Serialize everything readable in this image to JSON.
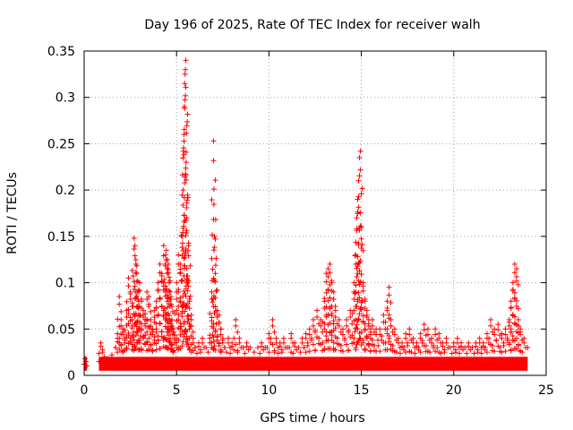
{
  "chart_data": {
    "type": "scatter",
    "title": "Day 196 of 2025, Rate Of TEC Index for receiver walh",
    "xlabel": "GPS time / hours",
    "ylabel": "ROTI / TECUs",
    "xlim": [
      0,
      25
    ],
    "ylim": [
      0,
      0.35
    ],
    "xticks": [
      0,
      5,
      10,
      15,
      20,
      25
    ],
    "yticks": [
      0,
      0.05,
      0.1,
      0.15,
      0.2,
      0.25,
      0.3,
      0.35
    ],
    "xtick_labels": [
      "0",
      "5",
      "10",
      "15",
      "20",
      "25"
    ],
    "ytick_labels": [
      "0",
      "0.05",
      "0.1",
      "0.15",
      "0.2",
      "0.25",
      "0.3",
      "0.35"
    ],
    "grid": true,
    "marker": "+",
    "color": "#ff0000",
    "series": [
      {
        "name": "ROTI",
        "x": [
          0.0,
          0.05,
          0.1,
          0.15,
          0.8,
          0.9,
          1.0,
          1.1,
          1.3,
          1.5,
          1.7,
          1.8,
          1.9,
          2.0,
          2.1,
          2.2,
          2.3,
          2.4,
          2.5,
          2.6,
          2.7,
          2.75,
          2.8,
          2.85,
          2.9,
          2.95,
          3.0,
          3.1,
          3.2,
          3.3,
          3.4,
          3.5,
          3.6,
          3.7,
          3.8,
          3.9,
          4.0,
          4.1,
          4.2,
          4.3,
          4.4,
          4.45,
          4.5,
          4.55,
          4.6,
          4.65,
          4.7,
          4.75,
          4.8,
          4.9,
          5.0,
          5.1,
          5.2,
          5.3,
          5.35,
          5.4,
          5.42,
          5.44,
          5.46,
          5.48,
          5.5,
          5.52,
          5.55,
          5.6,
          5.65,
          5.7,
          5.8,
          5.9,
          6.0,
          6.2,
          6.4,
          6.6,
          6.8,
          6.9,
          7.0,
          7.02,
          7.05,
          7.1,
          7.2,
          7.3,
          7.4,
          7.5,
          7.6,
          7.8,
          8.0,
          8.2,
          8.4,
          8.6,
          8.8,
          9.0,
          9.2,
          9.4,
          9.6,
          9.8,
          10.0,
          10.2,
          10.4,
          10.6,
          10.8,
          11.0,
          11.2,
          11.4,
          11.6,
          11.8,
          12.0,
          12.2,
          12.4,
          12.6,
          12.8,
          13.0,
          13.1,
          13.2,
          13.3,
          13.4,
          13.5,
          13.6,
          13.8,
          14.0,
          14.2,
          14.4,
          14.6,
          14.7,
          14.75,
          14.8,
          14.85,
          14.9,
          14.95,
          15.0,
          15.1,
          15.2,
          15.3,
          15.4,
          15.5,
          15.6,
          15.8,
          16.0,
          16.2,
          16.4,
          16.5,
          16.6,
          16.8,
          17.0,
          17.2,
          17.4,
          17.6,
          17.8,
          18.0,
          18.2,
          18.4,
          18.6,
          18.8,
          19.0,
          19.2,
          19.4,
          19.6,
          19.8,
          20.0,
          20.2,
          20.4,
          20.6,
          20.8,
          21.0,
          21.2,
          21.4,
          21.6,
          21.8,
          22.0,
          22.2,
          22.4,
          22.6,
          22.8,
          23.0,
          23.1,
          23.2,
          23.3,
          23.4,
          23.5,
          23.6,
          23.8,
          24.0
        ],
        "y": [
          0.012,
          0.018,
          0.015,
          0.01,
          0.015,
          0.035,
          0.025,
          0.02,
          0.018,
          0.022,
          0.03,
          0.045,
          0.085,
          0.06,
          0.05,
          0.04,
          0.07,
          0.105,
          0.09,
          0.06,
          0.148,
          0.14,
          0.12,
          0.11,
          0.09,
          0.08,
          0.1,
          0.08,
          0.07,
          0.06,
          0.09,
          0.085,
          0.06,
          0.05,
          0.07,
          0.08,
          0.1,
          0.12,
          0.11,
          0.14,
          0.13,
          0.135,
          0.125,
          0.12,
          0.1,
          0.09,
          0.085,
          0.06,
          0.05,
          0.04,
          0.09,
          0.13,
          0.12,
          0.15,
          0.2,
          0.26,
          0.29,
          0.315,
          0.325,
          0.33,
          0.34,
          0.23,
          0.17,
          0.1,
          0.14,
          0.08,
          0.06,
          0.04,
          0.03,
          0.035,
          0.04,
          0.03,
          0.04,
          0.09,
          0.253,
          0.201,
          0.15,
          0.11,
          0.07,
          0.065,
          0.05,
          0.04,
          0.03,
          0.04,
          0.035,
          0.06,
          0.04,
          0.03,
          0.035,
          0.03,
          0.025,
          0.03,
          0.035,
          0.03,
          0.045,
          0.06,
          0.04,
          0.035,
          0.04,
          0.03,
          0.045,
          0.035,
          0.03,
          0.04,
          0.045,
          0.05,
          0.06,
          0.07,
          0.06,
          0.08,
          0.11,
          0.115,
          0.12,
          0.1,
          0.09,
          0.07,
          0.06,
          0.05,
          0.06,
          0.07,
          0.09,
          0.13,
          0.17,
          0.19,
          0.21,
          0.235,
          0.242,
          0.16,
          0.1,
          0.08,
          0.07,
          0.06,
          0.05,
          0.06,
          0.05,
          0.05,
          0.065,
          0.08,
          0.095,
          0.06,
          0.05,
          0.04,
          0.035,
          0.045,
          0.05,
          0.04,
          0.035,
          0.045,
          0.055,
          0.05,
          0.04,
          0.05,
          0.045,
          0.035,
          0.04,
          0.03,
          0.035,
          0.04,
          0.035,
          0.03,
          0.035,
          0.03,
          0.035,
          0.04,
          0.035,
          0.045,
          0.06,
          0.05,
          0.055,
          0.045,
          0.05,
          0.06,
          0.08,
          0.1,
          0.12,
          0.115,
          0.06,
          0.05,
          0.04,
          0.03
        ]
      }
    ]
  }
}
